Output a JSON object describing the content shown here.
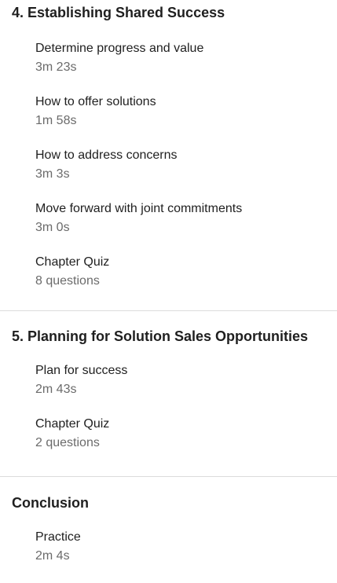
{
  "chapters": [
    {
      "title": "4. Establishing Shared Success",
      "items": [
        {
          "title": "Determine progress and value",
          "meta": "3m 23s"
        },
        {
          "title": "How to offer solutions",
          "meta": "1m 58s"
        },
        {
          "title": "How to address concerns",
          "meta": "3m 3s"
        },
        {
          "title": "Move forward with joint commitments",
          "meta": "3m 0s"
        },
        {
          "title": "Chapter Quiz",
          "meta": "8 questions"
        }
      ]
    },
    {
      "title": "5. Planning for Solution Sales Opportunities",
      "items": [
        {
          "title": "Plan for success",
          "meta": "2m 43s"
        },
        {
          "title": "Chapter Quiz",
          "meta": "2 questions"
        }
      ]
    },
    {
      "title": "Conclusion",
      "items": [
        {
          "title": "Practice",
          "meta": "2m 4s"
        }
      ]
    }
  ]
}
